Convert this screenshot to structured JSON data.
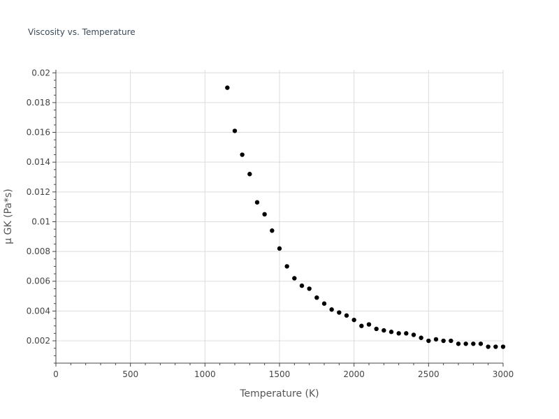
{
  "chart_data": {
    "type": "scatter",
    "title": "Viscosity vs. Temperature",
    "xlabel": "Temperature (K)",
    "ylabel": "μ GK (Pa*s)",
    "xlim": [
      0,
      3000
    ],
    "ylim": [
      0.0005,
      0.0202
    ],
    "x_ticks": [
      0,
      500,
      1000,
      1500,
      2000,
      2500,
      3000
    ],
    "x_tick_labels": [
      "0",
      "500",
      "1000",
      "1500",
      "2000",
      "2500",
      "3000"
    ],
    "y_ticks": [
      0.002,
      0.004,
      0.006,
      0.008,
      0.01,
      0.012,
      0.014,
      0.016,
      0.018,
      0.02
    ],
    "y_tick_labels": [
      "0.002",
      "0.004",
      "0.006",
      "0.008",
      "0.01",
      "0.012",
      "0.014",
      "0.016",
      "0.018",
      "0.02"
    ],
    "grid": true,
    "marker_color": "#000000",
    "series": [
      {
        "name": "μ GK",
        "x": [
          1150,
          1200,
          1250,
          1300,
          1350,
          1400,
          1450,
          1500,
          1550,
          1600,
          1650,
          1700,
          1750,
          1800,
          1850,
          1900,
          1950,
          2000,
          2050,
          2100,
          2150,
          2200,
          2250,
          2300,
          2350,
          2400,
          2450,
          2500,
          2550,
          2600,
          2650,
          2700,
          2750,
          2800,
          2850,
          2900,
          2950,
          3000
        ],
        "y": [
          0.019,
          0.0161,
          0.0145,
          0.0132,
          0.0113,
          0.0105,
          0.0094,
          0.0082,
          0.007,
          0.0062,
          0.0057,
          0.0055,
          0.0049,
          0.0045,
          0.0041,
          0.0039,
          0.0037,
          0.0034,
          0.003,
          0.0031,
          0.0028,
          0.0027,
          0.0026,
          0.0025,
          0.0025,
          0.0024,
          0.0022,
          0.002,
          0.0021,
          0.002,
          0.002,
          0.0018,
          0.0018,
          0.0018,
          0.0018,
          0.0016,
          0.0016,
          0.0016
        ]
      }
    ]
  }
}
